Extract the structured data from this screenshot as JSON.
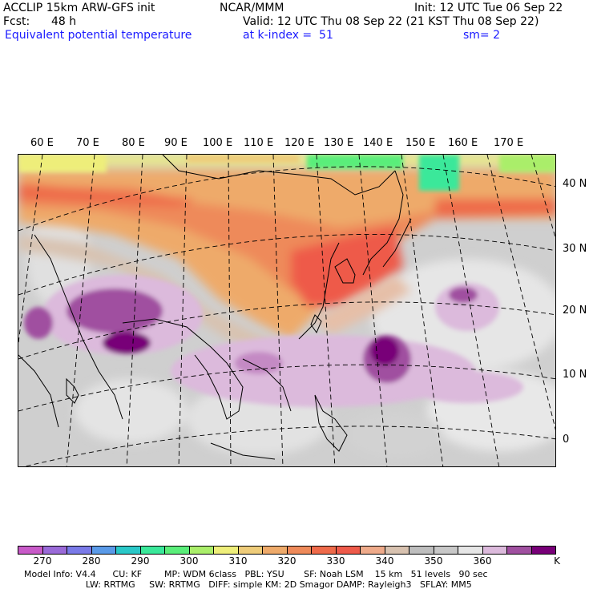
{
  "header": {
    "title_left": "ACCLIP 15km ARW-GFS init",
    "center": "NCAR/MMM",
    "init": "Init: 12 UTC Tue 06 Sep 22",
    "fcst_label": "Fcst:",
    "fcst_value": "48 h",
    "valid": "Valid: 12 UTC Thu 08 Sep 22 (21 KST Thu 08 Sep 22)",
    "field_name": "Equivalent potential temperature",
    "level": "at k-index =  51",
    "smoothing": "sm= 2"
  },
  "map": {
    "lon_labels": [
      "60 E",
      "70 E",
      "80 E",
      "90 E",
      "100 E",
      "110 E",
      "120 E",
      "130 E",
      "140 E",
      "150 E",
      "160 E",
      "170 E"
    ],
    "lat_labels": [
      "40 N",
      "30 N",
      "20 N",
      "10 N",
      "0"
    ]
  },
  "colorbar": {
    "unit": "K",
    "ticks": [
      "270",
      "280",
      "290",
      "300",
      "310",
      "320",
      "330",
      "340",
      "350",
      "360"
    ],
    "colors": [
      "#c85ac8",
      "#9a6ad8",
      "#7a7ae8",
      "#5a9ae8",
      "#2ac8c8",
      "#3ae89a",
      "#5aee7a",
      "#aaee6a",
      "#eeee7a",
      "#eecc7a",
      "#eeaa6a",
      "#ee8a5a",
      "#ee6a4a",
      "#ee5a4a",
      "#eeaa8a",
      "#d8c2b0",
      "#bebebe",
      "#c8c8c8",
      "#e6e6e6",
      "#dcbadc",
      "#a050a0",
      "#780078"
    ]
  },
  "footer": {
    "line1": "Model Info: V4.4      CU: KF        MP: WDM 6class   PBL: YSU       SF: Noah LSM    15 km   51 levels   90 sec",
    "line2": "                      LW: RRTMG     SW: RRTMG   DIFF: simple KM: 2D Smagor DAMP: Rayleigh3   SFLAY: MM5"
  }
}
